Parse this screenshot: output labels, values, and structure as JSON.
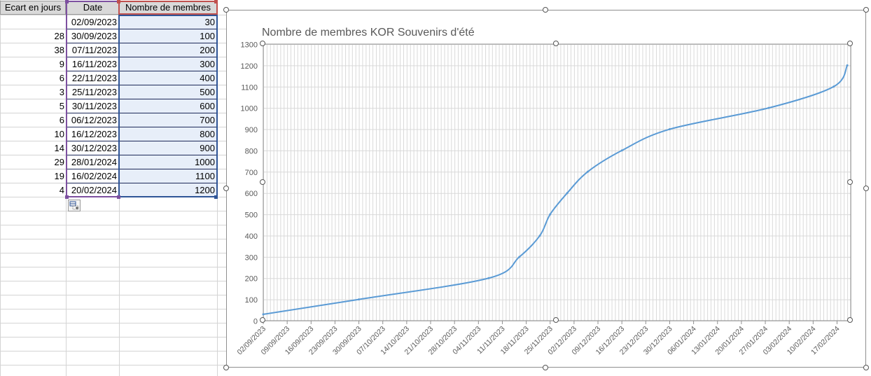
{
  "table": {
    "headers": [
      "Ecart en jours",
      "Date",
      "Nombre de membres"
    ],
    "rows": [
      {
        "gap": "",
        "date": "02/09/2023",
        "members": "30"
      },
      {
        "gap": "28",
        "date": "30/09/2023",
        "members": "100"
      },
      {
        "gap": "38",
        "date": "07/11/2023",
        "members": "200"
      },
      {
        "gap": "9",
        "date": "16/11/2023",
        "members": "300"
      },
      {
        "gap": "6",
        "date": "22/11/2023",
        "members": "400"
      },
      {
        "gap": "3",
        "date": "25/11/2023",
        "members": "500"
      },
      {
        "gap": "5",
        "date": "30/11/2023",
        "members": "600"
      },
      {
        "gap": "6",
        "date": "06/12/2023",
        "members": "700"
      },
      {
        "gap": "10",
        "date": "16/12/2023",
        "members": "800"
      },
      {
        "gap": "14",
        "date": "30/12/2023",
        "members": "900"
      },
      {
        "gap": "29",
        "date": "28/01/2024",
        "members": "1000"
      },
      {
        "gap": "19",
        "date": "16/02/2024",
        "members": "1100"
      },
      {
        "gap": "4",
        "date": "20/02/2024",
        "members": "1200"
      }
    ]
  },
  "chart_data": {
    "type": "line",
    "title": "Nombre de membres KOR Souvenirs d'été",
    "xlabel": "",
    "ylabel": "",
    "x": [
      "02/09/2023",
      "30/09/2023",
      "07/11/2023",
      "16/11/2023",
      "22/11/2023",
      "25/11/2023",
      "30/11/2023",
      "06/12/2023",
      "16/12/2023",
      "30/12/2023",
      "28/01/2024",
      "16/02/2024",
      "20/02/2024"
    ],
    "series": [
      {
        "values": [
          30,
          100,
          200,
          300,
          400,
          500,
          600,
          700,
          800,
          900,
          1000,
          1100,
          1200
        ]
      }
    ],
    "ylim": [
      0,
      1300
    ],
    "yticks": [
      0,
      100,
      200,
      300,
      400,
      500,
      600,
      700,
      800,
      900,
      1000,
      1100,
      1200,
      1300
    ],
    "xlim": [
      "02/09/2023",
      "21/02/2024"
    ],
    "xticks": [
      "02/09/2023",
      "09/09/2023",
      "16/09/2023",
      "23/09/2023",
      "30/09/2023",
      "07/10/2023",
      "14/10/2023",
      "21/10/2023",
      "28/10/2023",
      "04/11/2023",
      "11/11/2023",
      "18/11/2023",
      "25/11/2023",
      "02/12/2023",
      "09/12/2023",
      "16/12/2023",
      "23/12/2023",
      "30/12/2023",
      "06/01/2024",
      "13/01/2024",
      "20/01/2024",
      "27/01/2024",
      "03/02/2024",
      "10/02/2024",
      "17/02/2024"
    ],
    "grid": true,
    "colors": {
      "line": "#5b9bd5",
      "grid": "#d9d9d9",
      "axis_text": "#595959",
      "title": "#595959"
    }
  }
}
